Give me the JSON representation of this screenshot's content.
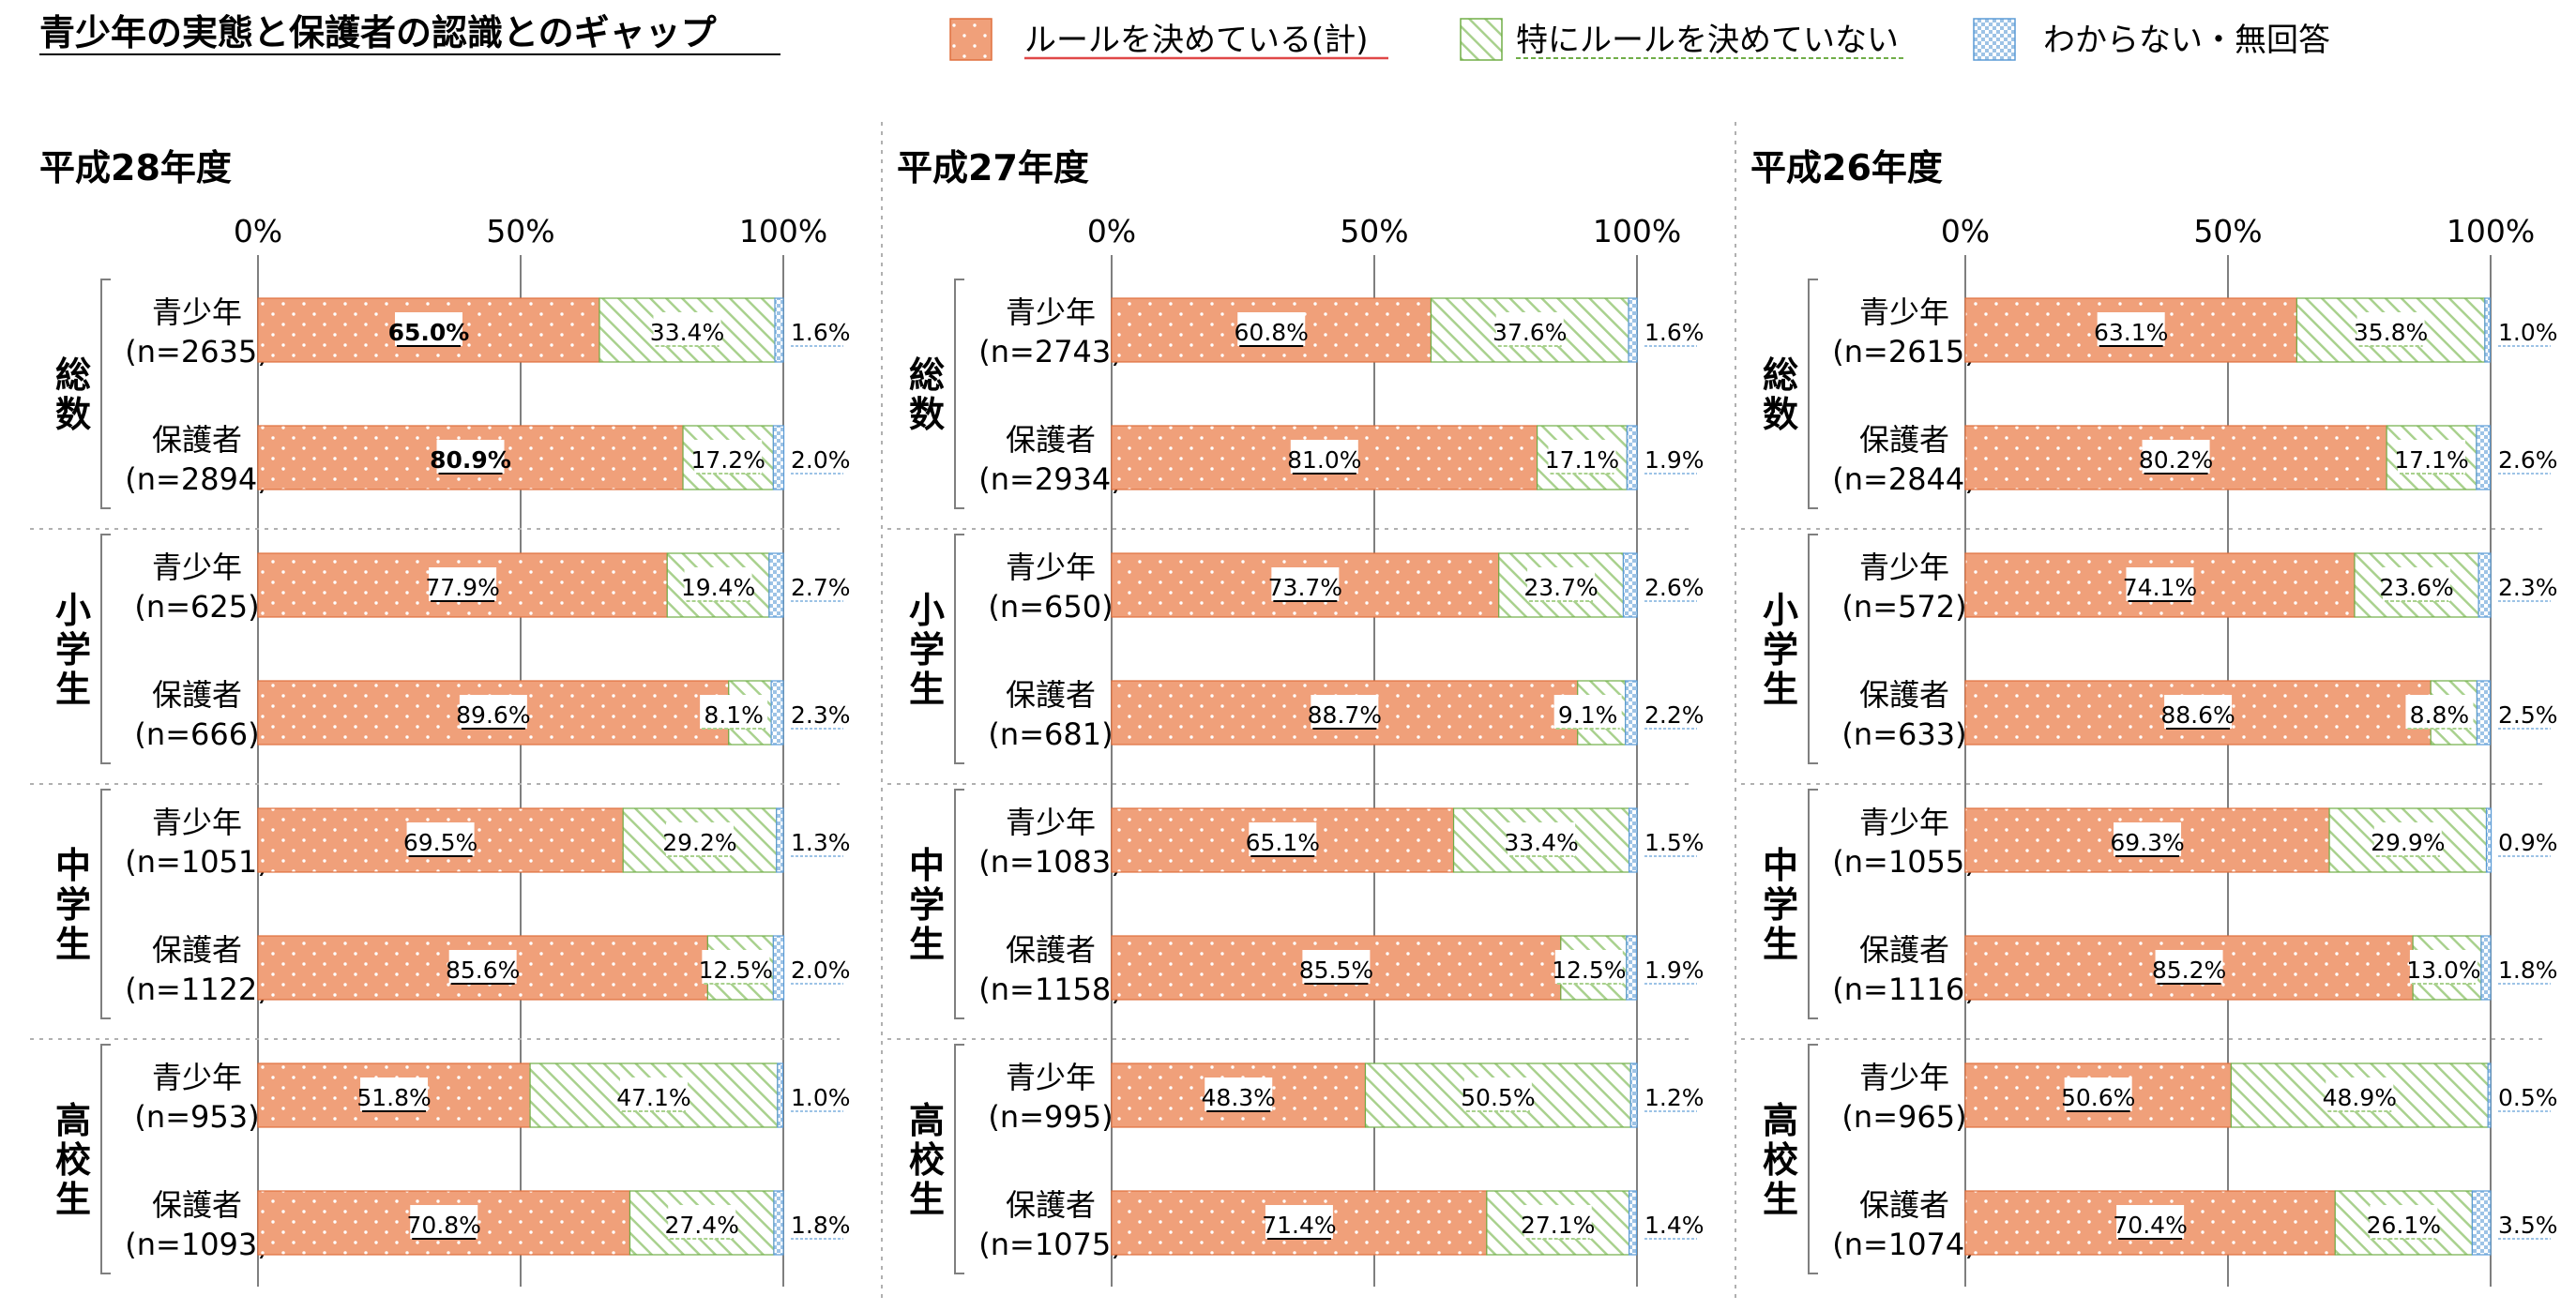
{
  "title": "青少年の実態と保護者の認識とのギャップ",
  "legend": [
    {
      "label": "ルールを決めている(計)",
      "color": "#F0A07A",
      "pattern": "dots"
    },
    {
      "label": "特にルールを決めていない",
      "color": "#A9D18E",
      "pattern": "hatch"
    },
    {
      "label": "わからない・無回答",
      "color": "#9DC3E6",
      "pattern": "check"
    }
  ],
  "chart_data": [
    {
      "type": "bar",
      "stacked": true,
      "orientation": "horizontal",
      "title": "平成28年度",
      "ticks": [
        "0%",
        "50%",
        "100%"
      ],
      "xlim": [
        0,
        100
      ],
      "groups": [
        "総数",
        "小学生",
        "中学生",
        "高校生"
      ],
      "categories": [
        "青少年",
        "(n=2635)",
        "保護者",
        "(n=2894)"
      ],
      "rows": [
        {
          "group": "総数",
          "label": "青少年",
          "n": "(n=2635)",
          "values": [
            65.0,
            33.4,
            1.6
          ],
          "labels": [
            "65.0%",
            "33.4%",
            "1.6%"
          ]
        },
        {
          "group": "総数",
          "label": "保護者",
          "n": "(n=2894)",
          "values": [
            80.9,
            17.2,
            2.0
          ],
          "labels": [
            "80.9%",
            "17.2%",
            "2.0%"
          ]
        },
        {
          "group": "小学生",
          "label": "青少年",
          "n": "(n=625)",
          "values": [
            77.9,
            19.4,
            2.7
          ],
          "labels": [
            "77.9%",
            "19.4%",
            "2.7%"
          ]
        },
        {
          "group": "小学生",
          "label": "保護者",
          "n": "(n=666)",
          "values": [
            89.6,
            8.1,
            2.3
          ],
          "labels": [
            "89.6%",
            "8.1%",
            "2.3%"
          ]
        },
        {
          "group": "中学生",
          "label": "青少年",
          "n": "(n=1051)",
          "values": [
            69.5,
            29.2,
            1.3
          ],
          "labels": [
            "69.5%",
            "29.2%",
            "1.3%"
          ]
        },
        {
          "group": "中学生",
          "label": "保護者",
          "n": "(n=1122)",
          "values": [
            85.6,
            12.5,
            2.0
          ],
          "labels": [
            "85.6%",
            "12.5%",
            "2.0%"
          ]
        },
        {
          "group": "高校生",
          "label": "青少年",
          "n": "(n=953)",
          "values": [
            51.8,
            47.1,
            1.0
          ],
          "labels": [
            "51.8%",
            "47.1%",
            "1.0%"
          ]
        },
        {
          "group": "高校生",
          "label": "保護者",
          "n": "(n=1093)",
          "values": [
            70.8,
            27.4,
            1.8
          ],
          "labels": [
            "70.8%",
            "27.4%",
            "1.8%"
          ]
        }
      ]
    },
    {
      "type": "bar",
      "stacked": true,
      "orientation": "horizontal",
      "title": "平成27年度",
      "ticks": [
        "0%",
        "50%",
        "100%"
      ],
      "xlim": [
        0,
        100
      ],
      "groups": [
        "総数",
        "小学生",
        "中学生",
        "高校生"
      ],
      "rows": [
        {
          "group": "総数",
          "label": "青少年",
          "n": "(n=2743)",
          "values": [
            60.8,
            37.6,
            1.6
          ],
          "labels": [
            "60.8%",
            "37.6%",
            "1.6%"
          ]
        },
        {
          "group": "総数",
          "label": "保護者",
          "n": "(n=2934)",
          "values": [
            81.0,
            17.1,
            1.9
          ],
          "labels": [
            "81.0%",
            "17.1%",
            "1.9%"
          ]
        },
        {
          "group": "小学生",
          "label": "青少年",
          "n": "(n=650)",
          "values": [
            73.7,
            23.7,
            2.6
          ],
          "labels": [
            "73.7%",
            "23.7%",
            "2.6%"
          ]
        },
        {
          "group": "小学生",
          "label": "保護者",
          "n": "(n=681)",
          "values": [
            88.7,
            9.1,
            2.2
          ],
          "labels": [
            "88.7%",
            "9.1%",
            "2.2%"
          ]
        },
        {
          "group": "中学生",
          "label": "青少年",
          "n": "(n=1083)",
          "values": [
            65.1,
            33.4,
            1.5
          ],
          "labels": [
            "65.1%",
            "33.4%",
            "1.5%"
          ]
        },
        {
          "group": "中学生",
          "label": "保護者",
          "n": "(n=1158)",
          "values": [
            85.5,
            12.5,
            1.9
          ],
          "labels": [
            "85.5%",
            "12.5%",
            "1.9%"
          ]
        },
        {
          "group": "高校生",
          "label": "青少年",
          "n": "(n=995)",
          "values": [
            48.3,
            50.5,
            1.2
          ],
          "labels": [
            "48.3%",
            "50.5%",
            "1.2%"
          ]
        },
        {
          "group": "高校生",
          "label": "保護者",
          "n": "(n=1075)",
          "values": [
            71.4,
            27.1,
            1.4
          ],
          "labels": [
            "71.4%",
            "27.1%",
            "1.4%"
          ]
        }
      ]
    },
    {
      "type": "bar",
      "stacked": true,
      "orientation": "horizontal",
      "title": "平成26年度",
      "ticks": [
        "0%",
        "50%",
        "100%"
      ],
      "xlim": [
        0,
        100
      ],
      "groups": [
        "総数",
        "小学生",
        "中学生",
        "高校生"
      ],
      "rows": [
        {
          "group": "総数",
          "label": "青少年",
          "n": "(n=2615)",
          "values": [
            63.1,
            35.8,
            1.0
          ],
          "labels": [
            "63.1%",
            "35.8%",
            "1.0%"
          ]
        },
        {
          "group": "総数",
          "label": "保護者",
          "n": "(n=2844)",
          "values": [
            80.2,
            17.1,
            2.6
          ],
          "labels": [
            "80.2%",
            "17.1%",
            "2.6%"
          ]
        },
        {
          "group": "小学生",
          "label": "青少年",
          "n": "(n=572)",
          "values": [
            74.1,
            23.6,
            2.3
          ],
          "labels": [
            "74.1%",
            "23.6%",
            "2.3%"
          ]
        },
        {
          "group": "小学生",
          "label": "保護者",
          "n": "(n=633)",
          "values": [
            88.6,
            8.8,
            2.5
          ],
          "labels": [
            "88.6%",
            "8.8%",
            "2.5%"
          ]
        },
        {
          "group": "中学生",
          "label": "青少年",
          "n": "(n=1055)",
          "values": [
            69.3,
            29.9,
            0.9
          ],
          "labels": [
            "69.3%",
            "29.9%",
            "0.9%"
          ]
        },
        {
          "group": "中学生",
          "label": "保護者",
          "n": "(n=1116)",
          "values": [
            85.2,
            13.0,
            1.8
          ],
          "labels": [
            "85.2%",
            "13.0%",
            "1.8%"
          ]
        },
        {
          "group": "高校生",
          "label": "青少年",
          "n": "(n=965)",
          "values": [
            50.6,
            48.9,
            0.5
          ],
          "labels": [
            "50.6%",
            "48.9%",
            "0.5%"
          ]
        },
        {
          "group": "高校生",
          "label": "保護者",
          "n": "(n=1074)",
          "values": [
            70.4,
            26.1,
            3.5
          ],
          "labels": [
            "70.4%",
            "26.1%",
            "3.5%"
          ]
        }
      ]
    }
  ]
}
